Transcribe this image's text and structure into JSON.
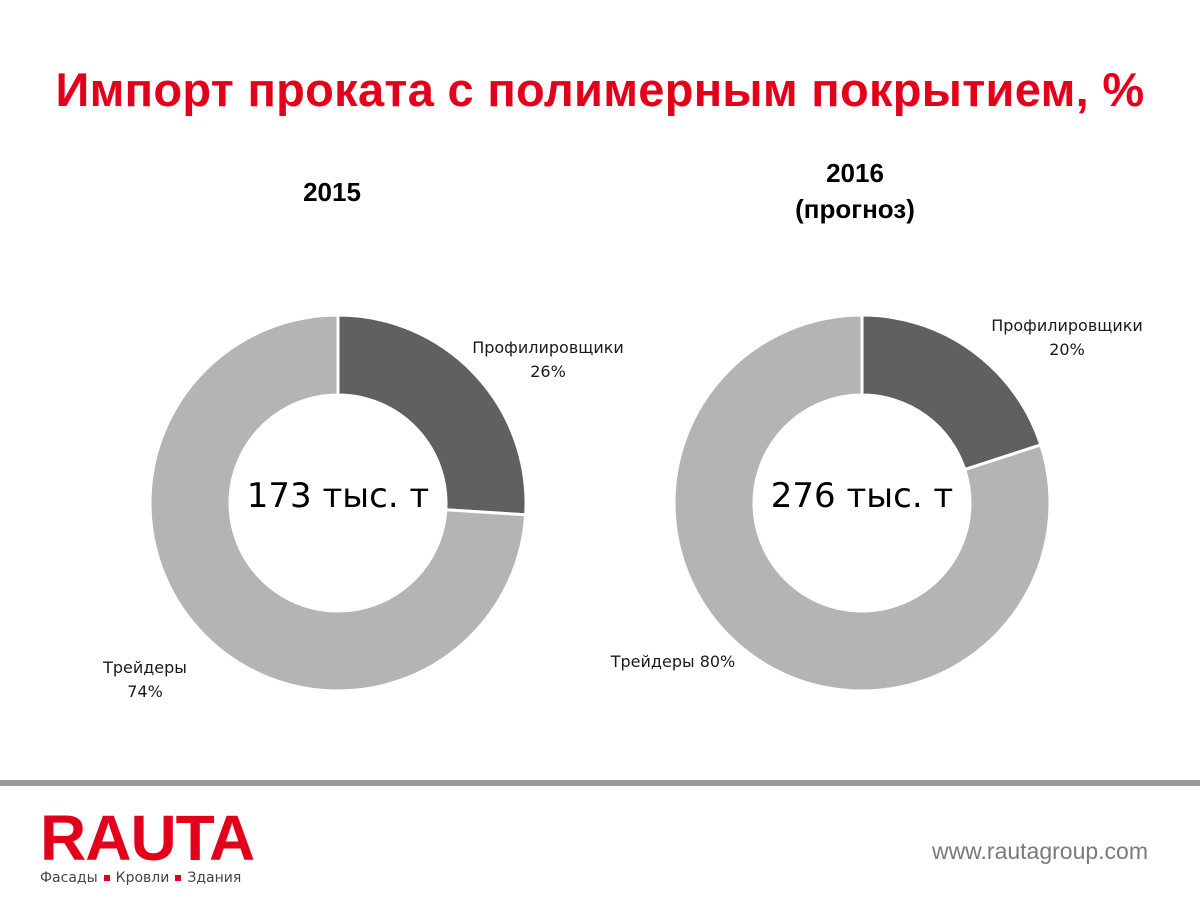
{
  "title": "Импорт проката с полимерным покрытием, %",
  "colors": {
    "accent": "#e3001b",
    "profilers": "#606060",
    "traders": "#b4b4b4"
  },
  "chart_data": [
    {
      "type": "pie",
      "title": "2015",
      "subtitle": "",
      "center_text": "173 тыс. т",
      "slices": [
        {
          "label": "Профилировщики",
          "value": 26,
          "value_text": "26%"
        },
        {
          "label": "Трейдеры",
          "value": 74,
          "value_text": "74%"
        }
      ]
    },
    {
      "type": "pie",
      "title": "2016",
      "subtitle": "(прогноз)",
      "center_text": "276 тыс. т",
      "slices": [
        {
          "label": "Профилировщики",
          "value": 20,
          "value_text": "20%"
        },
        {
          "label": "Трейдеры",
          "value": 80,
          "value_text": "80%"
        }
      ]
    }
  ],
  "footer": {
    "logo_text": "RAUTA",
    "tagline": [
      "Фасады",
      "Кровли",
      "Здания"
    ],
    "url": "www.rautagroup.com"
  }
}
